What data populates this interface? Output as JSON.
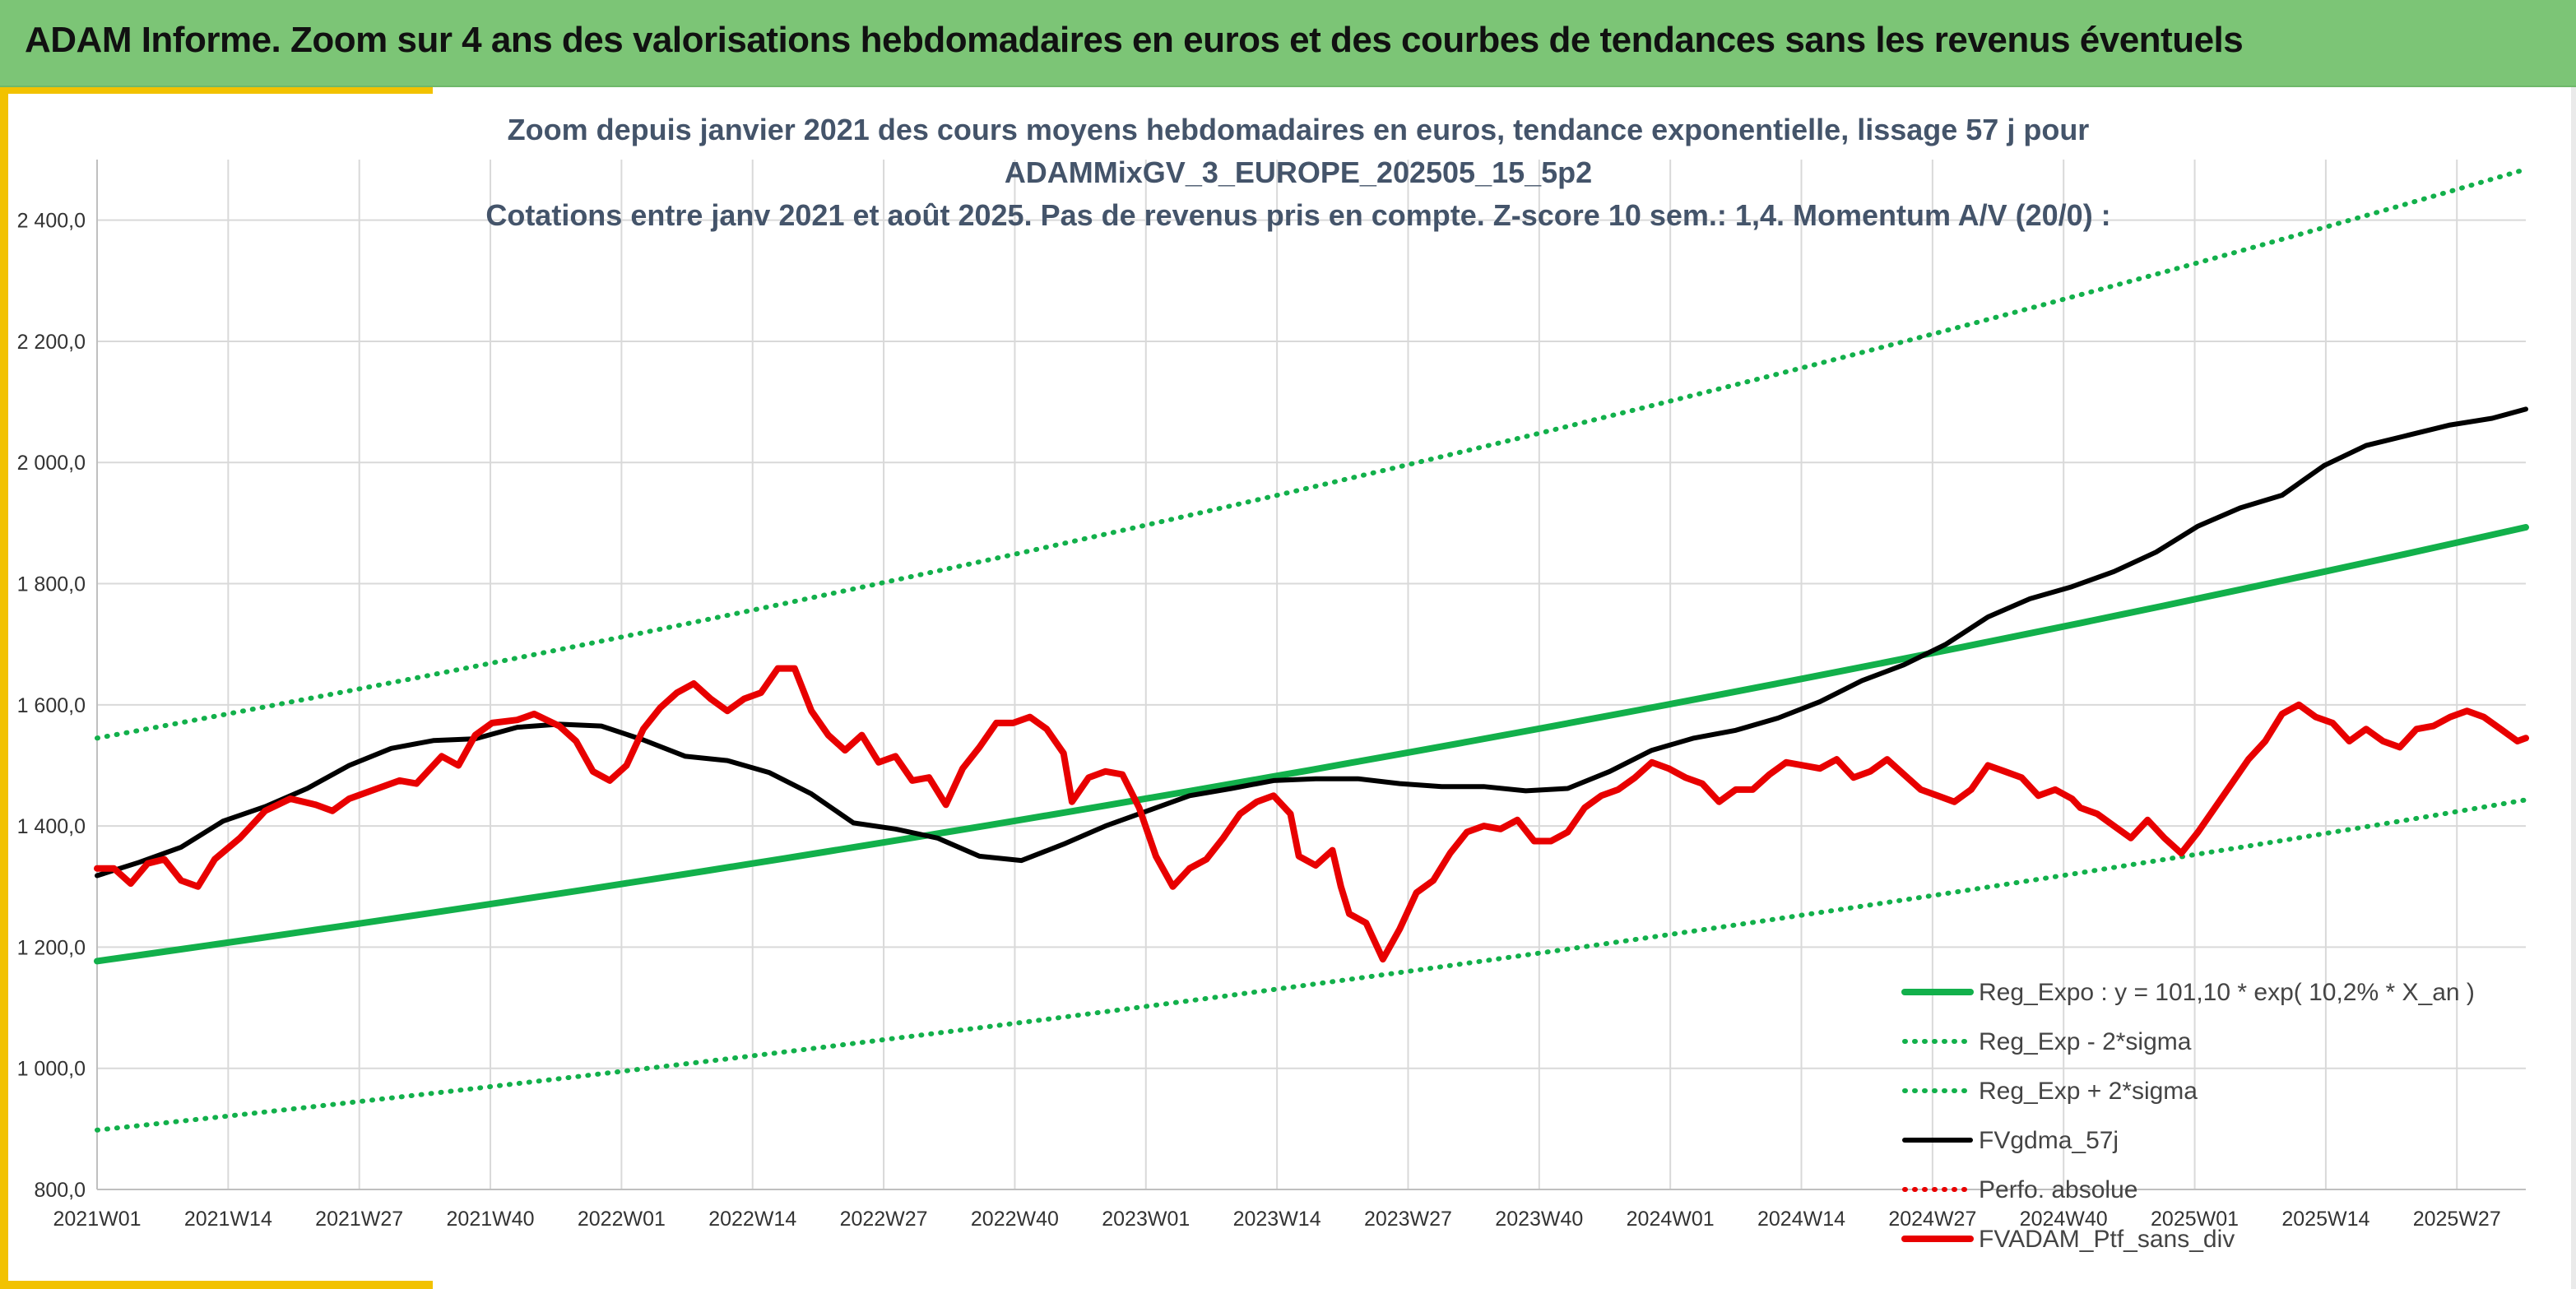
{
  "header": {
    "title": "ADAM Informe. Zoom sur 4 ans des valorisations hebdomadaires en euros et des courbes de tendances sans les revenus éventuels"
  },
  "colors": {
    "header_bg": "#7cc576",
    "accent": "#f2c200",
    "regression": "#12b04b",
    "sigma_band": "#12b04b",
    "moving_avg": "#000000",
    "perf_abs": "#e80000",
    "portfolio": "#e80000"
  },
  "chart_data": {
    "type": "line",
    "title": [
      "Zoom depuis janvier 2021 des cours moyens hebdomadaires en euros, tendance exponentielle, lissage 57 j pour",
      "ADAMMixGV_3_EUROPE_202505_15_5p2",
      "Cotations entre janv 2021 et août 2025. Pas de revenus pris en compte. Z-score 10 sem.: 1,4. Momentum A/V (20/0) :"
    ],
    "ylim": [
      800,
      2500
    ],
    "yticks": [
      800,
      1000,
      1200,
      1400,
      1600,
      1800,
      2000,
      2200,
      2400
    ],
    "ytick_labels": [
      "800,0",
      "1 000,0",
      "1 200,0",
      "1 400,0",
      "1 600,0",
      "1 800,0",
      "2 000,0",
      "2 200,0",
      "2 400,0"
    ],
    "xticks": [
      "2021W01",
      "2021W14",
      "2021W27",
      "2021W40",
      "2022W01",
      "2022W14",
      "2022W27",
      "2022W40",
      "2023W01",
      "2023W14",
      "2023W27",
      "2023W40",
      "2024W01",
      "2024W14",
      "2024W27",
      "2024W40",
      "2025W01",
      "2025W14",
      "2025W27"
    ],
    "x_week_range": [
      0,
      241
    ],
    "grid": true,
    "legend_position": "bottom-right",
    "series": [
      {
        "name": "Reg_Expo : y = 101,10 * exp( 10,2% *  X_an )",
        "style": "solid-thick",
        "color": "#12b04b",
        "points": [
          [
            0,
            1177
          ],
          [
            241,
            1893
          ]
        ]
      },
      {
        "name": "Reg_Exp - 2*sigma",
        "style": "dotted",
        "color": "#12b04b",
        "points": [
          [
            0,
            898
          ],
          [
            241,
            1443
          ]
        ]
      },
      {
        "name": "Reg_Exp + 2*sigma",
        "style": "dotted",
        "color": "#12b04b",
        "points": [
          [
            0,
            1545
          ],
          [
            241,
            2484
          ]
        ]
      },
      {
        "name": "FVgdma_57j",
        "style": "solid",
        "color": "#000000",
        "points": [
          [
            0,
            1318
          ],
          [
            5,
            1340
          ],
          [
            10,
            1365
          ],
          [
            15,
            1408
          ],
          [
            20,
            1432
          ],
          [
            25,
            1462
          ],
          [
            30,
            1500
          ],
          [
            35,
            1528
          ],
          [
            40,
            1541
          ],
          [
            45,
            1544
          ],
          [
            50,
            1563
          ],
          [
            55,
            1568
          ],
          [
            60,
            1565
          ],
          [
            65,
            1542
          ],
          [
            70,
            1515
          ],
          [
            75,
            1508
          ],
          [
            80,
            1488
          ],
          [
            85,
            1453
          ],
          [
            90,
            1405
          ],
          [
            95,
            1395
          ],
          [
            100,
            1380
          ],
          [
            105,
            1350
          ],
          [
            110,
            1343
          ],
          [
            115,
            1370
          ],
          [
            120,
            1400
          ],
          [
            125,
            1425
          ],
          [
            130,
            1450
          ],
          [
            135,
            1462
          ],
          [
            140,
            1475
          ],
          [
            145,
            1478
          ],
          [
            150,
            1478
          ],
          [
            155,
            1470
          ],
          [
            160,
            1465
          ],
          [
            165,
            1465
          ],
          [
            170,
            1458
          ],
          [
            175,
            1462
          ],
          [
            180,
            1490
          ],
          [
            185,
            1525
          ],
          [
            190,
            1545
          ],
          [
            195,
            1558
          ],
          [
            200,
            1578
          ],
          [
            205,
            1605
          ],
          [
            210,
            1640
          ],
          [
            215,
            1666
          ],
          [
            220,
            1700
          ],
          [
            225,
            1745
          ],
          [
            230,
            1775
          ],
          [
            235,
            1795
          ],
          [
            240,
            1820
          ],
          [
            245,
            1852
          ],
          [
            250,
            1895
          ],
          [
            255,
            1925
          ],
          [
            260,
            1946
          ],
          [
            265,
            1995
          ],
          [
            270,
            2028
          ],
          [
            275,
            2045
          ],
          [
            280,
            2062
          ],
          [
            285,
            2073
          ],
          [
            289,
            2088
          ]
        ]
      },
      {
        "name": "Perfo. absolue",
        "style": "dotted",
        "color": "#e80000",
        "points": []
      },
      {
        "name": "FVADAM_Ptf_sans_div",
        "style": "solid-thick",
        "color": "#e80000",
        "points": [
          [
            0,
            1330
          ],
          [
            2,
            1330
          ],
          [
            4,
            1305
          ],
          [
            6,
            1338
          ],
          [
            8,
            1345
          ],
          [
            10,
            1310
          ],
          [
            12,
            1300
          ],
          [
            14,
            1345
          ],
          [
            17,
            1380
          ],
          [
            20,
            1425
          ],
          [
            23,
            1445
          ],
          [
            26,
            1435
          ],
          [
            28,
            1425
          ],
          [
            30,
            1445
          ],
          [
            33,
            1460
          ],
          [
            36,
            1475
          ],
          [
            38,
            1470
          ],
          [
            41,
            1515
          ],
          [
            43,
            1500
          ],
          [
            45,
            1550
          ],
          [
            47,
            1570
          ],
          [
            50,
            1575
          ],
          [
            52,
            1585
          ],
          [
            55,
            1565
          ],
          [
            57,
            1540
          ],
          [
            59,
            1490
          ],
          [
            61,
            1475
          ],
          [
            63,
            1500
          ],
          [
            65,
            1560
          ],
          [
            67,
            1595
          ],
          [
            69,
            1620
          ],
          [
            71,
            1635
          ],
          [
            73,
            1610
          ],
          [
            75,
            1590
          ],
          [
            77,
            1610
          ],
          [
            79,
            1620
          ],
          [
            81,
            1660
          ],
          [
            83,
            1660
          ],
          [
            85,
            1590
          ],
          [
            87,
            1550
          ],
          [
            89,
            1525
          ],
          [
            91,
            1550
          ],
          [
            93,
            1505
          ],
          [
            95,
            1515
          ],
          [
            97,
            1475
          ],
          [
            99,
            1480
          ],
          [
            101,
            1435
          ],
          [
            103,
            1495
          ],
          [
            105,
            1530
          ],
          [
            107,
            1570
          ],
          [
            109,
            1570
          ],
          [
            111,
            1580
          ],
          [
            113,
            1560
          ],
          [
            115,
            1520
          ],
          [
            116,
            1440
          ],
          [
            118,
            1480
          ],
          [
            120,
            1490
          ],
          [
            122,
            1485
          ],
          [
            124,
            1430
          ],
          [
            126,
            1350
          ],
          [
            128,
            1300
          ],
          [
            130,
            1330
          ],
          [
            132,
            1345
          ],
          [
            134,
            1380
          ],
          [
            136,
            1420
          ],
          [
            138,
            1440
          ],
          [
            140,
            1450
          ],
          [
            142,
            1420
          ],
          [
            143,
            1350
          ],
          [
            145,
            1335
          ],
          [
            147,
            1360
          ],
          [
            148,
            1300
          ],
          [
            149,
            1255
          ],
          [
            151,
            1240
          ],
          [
            153,
            1180
          ],
          [
            155,
            1230
          ],
          [
            157,
            1290
          ],
          [
            159,
            1310
          ],
          [
            161,
            1355
          ],
          [
            163,
            1390
          ],
          [
            165,
            1400
          ],
          [
            167,
            1395
          ],
          [
            169,
            1410
          ],
          [
            171,
            1375
          ],
          [
            173,
            1375
          ],
          [
            175,
            1390
          ],
          [
            177,
            1430
          ],
          [
            179,
            1450
          ],
          [
            181,
            1460
          ],
          [
            183,
            1480
          ],
          [
            185,
            1505
          ],
          [
            187,
            1495
          ],
          [
            189,
            1480
          ],
          [
            191,
            1470
          ],
          [
            193,
            1440
          ],
          [
            195,
            1460
          ],
          [
            197,
            1460
          ],
          [
            199,
            1485
          ],
          [
            201,
            1505
          ],
          [
            203,
            1500
          ],
          [
            205,
            1495
          ],
          [
            207,
            1510
          ],
          [
            209,
            1480
          ],
          [
            211,
            1490
          ],
          [
            213,
            1510
          ],
          [
            215,
            1485
          ],
          [
            217,
            1460
          ],
          [
            219,
            1450
          ],
          [
            221,
            1440
          ],
          [
            223,
            1460
          ],
          [
            225,
            1500
          ],
          [
            227,
            1490
          ],
          [
            229,
            1480
          ],
          [
            231,
            1450
          ],
          [
            233,
            1460
          ],
          [
            235,
            1445
          ],
          [
            236,
            1430
          ],
          [
            238,
            1420
          ],
          [
            240,
            1400
          ],
          [
            242,
            1380
          ],
          [
            244,
            1410
          ],
          [
            246,
            1380
          ],
          [
            248,
            1355
          ],
          [
            250,
            1390
          ],
          [
            252,
            1430
          ],
          [
            254,
            1470
          ],
          [
            256,
            1510
          ],
          [
            258,
            1540
          ],
          [
            260,
            1585
          ],
          [
            262,
            1600
          ],
          [
            264,
            1580
          ],
          [
            266,
            1570
          ],
          [
            268,
            1540
          ],
          [
            270,
            1560
          ],
          [
            272,
            1540
          ],
          [
            274,
            1530
          ],
          [
            276,
            1560
          ],
          [
            278,
            1565
          ],
          [
            280,
            1580
          ],
          [
            282,
            1590
          ],
          [
            284,
            1580
          ],
          [
            286,
            1560
          ],
          [
            288,
            1540
          ],
          [
            289,
            1545
          ]
        ]
      }
    ]
  }
}
